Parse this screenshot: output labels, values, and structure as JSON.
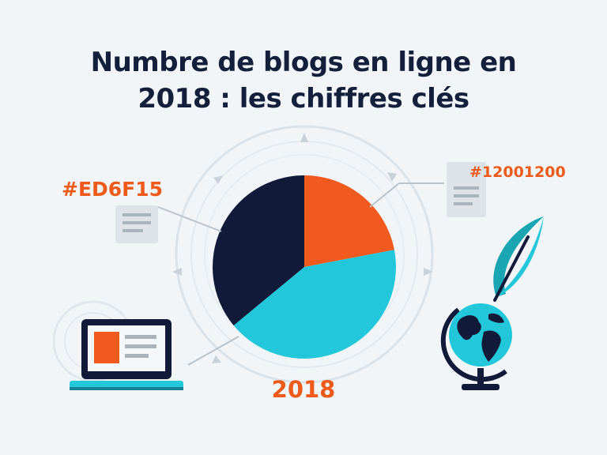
{
  "title": {
    "line1": "Numbre de blogs en ligne en",
    "line2": "2018 : les chiffres clés"
  },
  "labels": {
    "left": "#ED6F15",
    "right": "#12001200",
    "year": "2018"
  },
  "chart_data": {
    "type": "pie",
    "title": "Numbre de blogs en ligne en 2018 : les chiffres clés",
    "year_label": "2018",
    "slices": [
      {
        "share": 0.22,
        "color": "#f05a1e"
      },
      {
        "share": 0.42,
        "color": "#22c8da"
      },
      {
        "share": 0.36,
        "color": "#121a3a"
      }
    ],
    "start": "12 o'clock",
    "direction": "clockwise"
  },
  "icons": [
    "document-icon-left",
    "document-icon-right",
    "laptop-icon",
    "quill-icon",
    "globe-icon"
  ],
  "colors": {
    "title": "#14203b",
    "accent_orange": "#ed5a1a",
    "accent_cyan": "#22c8da",
    "dark_navy": "#121a3a",
    "background": "#f1f5f8"
  }
}
